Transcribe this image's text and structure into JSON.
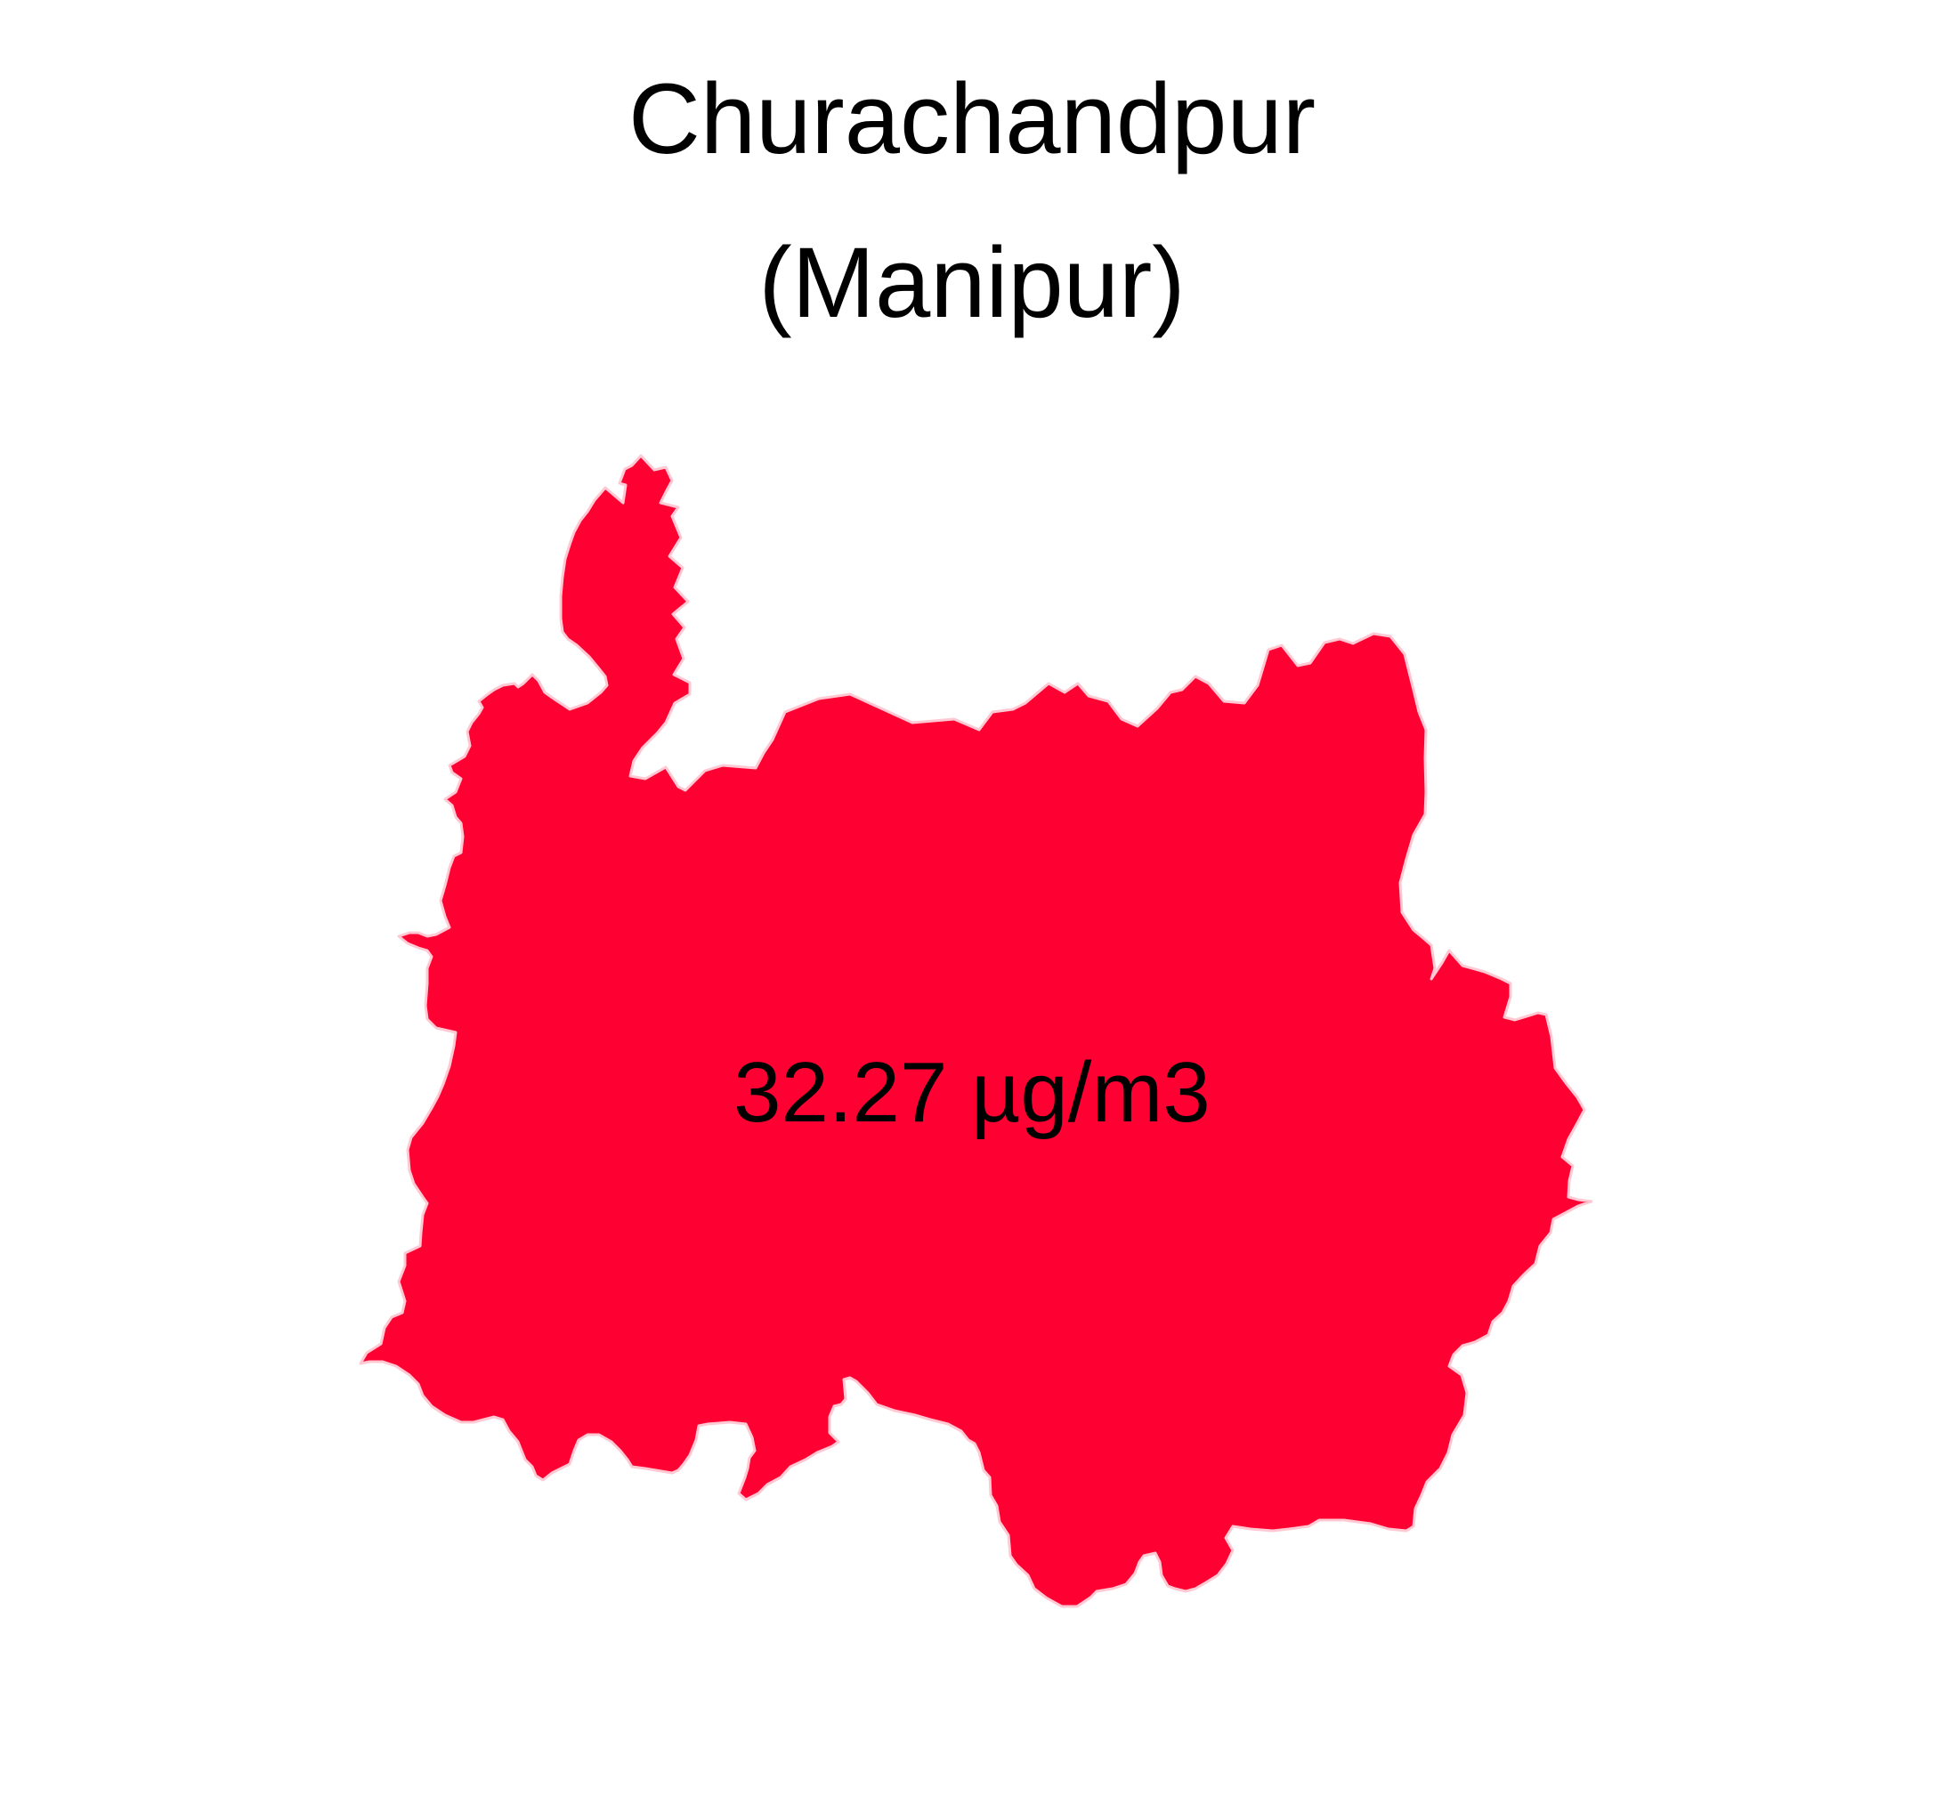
{
  "map": {
    "title_line_1": "Churachandpur",
    "title_line_2": "(Manipur)",
    "region_name": "Churachandpur",
    "state_name": "Manipur",
    "value_label": "32.27 µg/m3",
    "value": 32.27,
    "unit": "µg/m3",
    "fill_color": "#FF0033",
    "border_color": "#FFC8D2",
    "background_color": "#FFFFFF"
  }
}
